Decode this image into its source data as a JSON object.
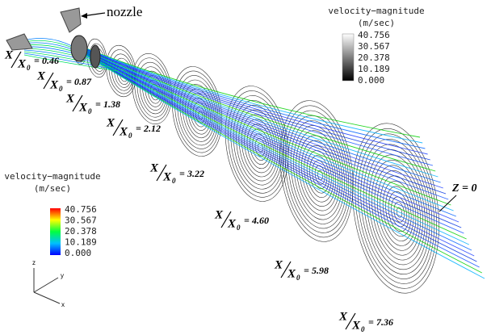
{
  "nozzle_label": "nozzle",
  "legend_top": {
    "title": "velocity−magnitude",
    "unit": "(m/sec)",
    "ticks": [
      "40.756",
      "30.567",
      "20.378",
      "10.189",
      "0.000"
    ]
  },
  "legend_left": {
    "title": "velocity−magnitude",
    "unit": "(m/sec)",
    "ticks": [
      "40.756",
      "30.567",
      "20.378",
      "10.189",
      "0.000"
    ]
  },
  "ratio": {
    "numerator": "X",
    "denominator": "X",
    "subscript": "0",
    "equals": "="
  },
  "stations": [
    "0.46",
    "0.87",
    "1.38",
    "2.12",
    "3.22",
    "4.60",
    "5.98",
    "7.36"
  ],
  "plane_label": "Z = 0"
}
